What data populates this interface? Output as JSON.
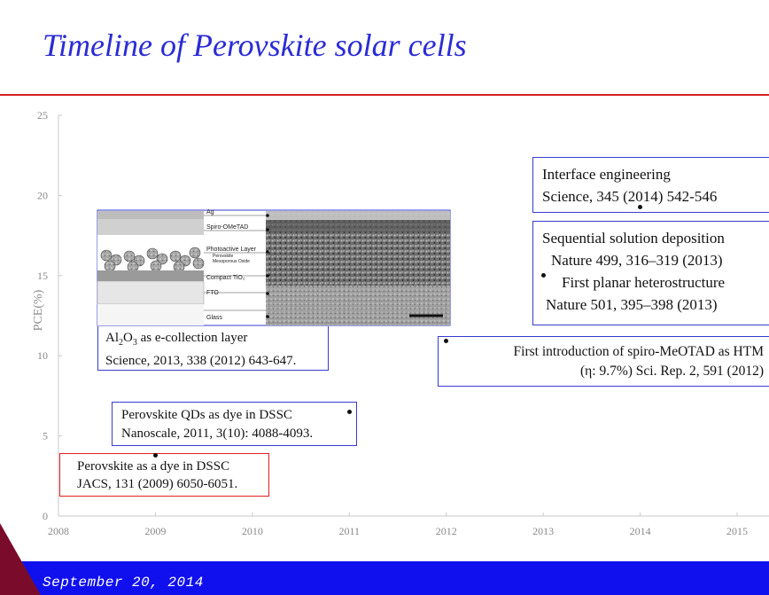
{
  "slide": {
    "title": "Timeline of Perovskite solar cells",
    "footer_date": "September 20, 2014"
  },
  "chart_data": {
    "type": "scatter",
    "title": "",
    "xlabel": "",
    "ylabel": "PCE(%)",
    "xlim": [
      2008,
      2015
    ],
    "ylim": [
      0,
      25
    ],
    "xticks": [
      "2008",
      "2009",
      "2010",
      "2011",
      "2012",
      "2013",
      "2014",
      "2015"
    ],
    "yticks": [
      "0",
      "5",
      "10",
      "15",
      "20",
      "25"
    ],
    "grid": false,
    "points": [
      {
        "x": 2009.0,
        "y": 3.8
      },
      {
        "x": 2011.0,
        "y": 6.5
      },
      {
        "x": 2012.0,
        "y": 10.9
      },
      {
        "x": 2013.0,
        "y": 15.0
      },
      {
        "x": 2014.0,
        "y": 19.3
      }
    ],
    "annotations": [
      {
        "line1": "Perovskite as a dye in DSSC",
        "line2": "JACS, 131 (2009) 6050-6051.",
        "border": "#e02020"
      },
      {
        "line1": "Perovskite QDs as dye in DSSC",
        "line2": "Nanoscale, 2011, 3(10): 4088-4093.",
        "border": "#3a3ad0"
      },
      {
        "line1": "Al₂O₃ as e-collection layer",
        "line2": "Science, 2013, 338 (2012) 643-647.",
        "border": "#3a3ad0"
      },
      {
        "line1": "First introduction of spiro-MeOTAD as HTM",
        "line2": "(η: 9.7%)    Sci. Rep. 2,  591 (2012)",
        "border": "#3a3ad0"
      },
      {
        "line1": "Sequential solution deposition",
        "line2": "Nature 499, 316–319 (2013)",
        "line3": "First planar heterostructure",
        "line4": "Nature  501, 395–398 (2013)",
        "border": "#3a3ad0"
      },
      {
        "line1": "Interface engineering",
        "line2": "Science, 345 (2014) 542-546",
        "border": "#3a3ad0"
      }
    ],
    "inset": {
      "layers": [
        "Ag",
        "Spiro-OMeTAD",
        "Photoactive Layer",
        "Perovskite",
        "Mesoporous Oxide",
        "Compact TiO₂",
        "FTO",
        "Glass"
      ]
    }
  }
}
